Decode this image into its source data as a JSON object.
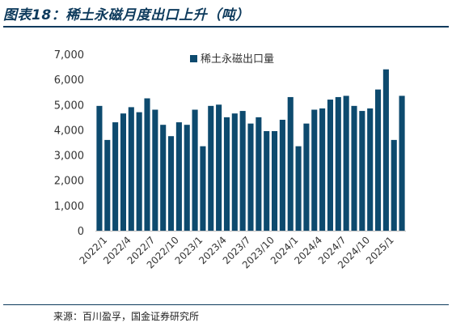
{
  "header": {
    "title": "图表18：稀土永磁月度出口上升（吨）"
  },
  "footer": {
    "source": "来源：百川盈孚，国金证券研究所"
  },
  "colors": {
    "bar": "#0d4a6e",
    "rule": "#0d3a5c"
  },
  "chart_data": {
    "type": "bar",
    "title": "",
    "xlabel": "",
    "ylabel": "",
    "ylim": [
      0,
      7000
    ],
    "yticks": [
      "0",
      "1,000",
      "2,000",
      "3,000",
      "4,000",
      "5,000",
      "6,000",
      "7,000"
    ],
    "ytick_values": [
      0,
      1000,
      2000,
      3000,
      4000,
      5000,
      6000,
      7000
    ],
    "legend_position": "top-center",
    "grid": false,
    "categories": [
      "2022/1",
      "2022/2",
      "2022/3",
      "2022/4",
      "2022/5",
      "2022/6",
      "2022/7",
      "2022/8",
      "2022/9",
      "2022/10",
      "2022/11",
      "2022/12",
      "2023/1",
      "2023/2",
      "2023/3",
      "2023/4",
      "2023/5",
      "2023/6",
      "2023/7",
      "2023/8",
      "2023/9",
      "2023/10",
      "2023/11",
      "2023/12",
      "2024/1",
      "2024/2",
      "2024/3",
      "2024/4",
      "2024/5",
      "2024/6",
      "2024/7",
      "2024/8",
      "2024/9",
      "2024/10",
      "2024/11",
      "2024/12",
      "2025/1",
      "2025/2",
      "2025/3"
    ],
    "xtick_labels": [
      "2022/1",
      "2022/4",
      "2022/7",
      "2022/10",
      "2023/1",
      "2023/4",
      "2023/7",
      "2023/10",
      "2024/1",
      "2024/4",
      "2024/7",
      "2024/10",
      "2025/1"
    ],
    "xtick_indices": [
      0,
      3,
      6,
      9,
      12,
      15,
      18,
      21,
      24,
      27,
      30,
      33,
      36
    ],
    "series": [
      {
        "name": "稀土永磁出口量",
        "values": [
          4950,
          3600,
          4300,
          4650,
          4900,
          4700,
          5250,
          4800,
          4200,
          3750,
          4300,
          4200,
          4800,
          3350,
          4950,
          5000,
          4500,
          4650,
          4750,
          4250,
          4500,
          3950,
          3950,
          4400,
          5300,
          3350,
          4250,
          4800,
          4850,
          5200,
          5300,
          5350,
          4950,
          4750,
          4850,
          5600,
          6400,
          3600,
          5350
        ]
      }
    ]
  }
}
